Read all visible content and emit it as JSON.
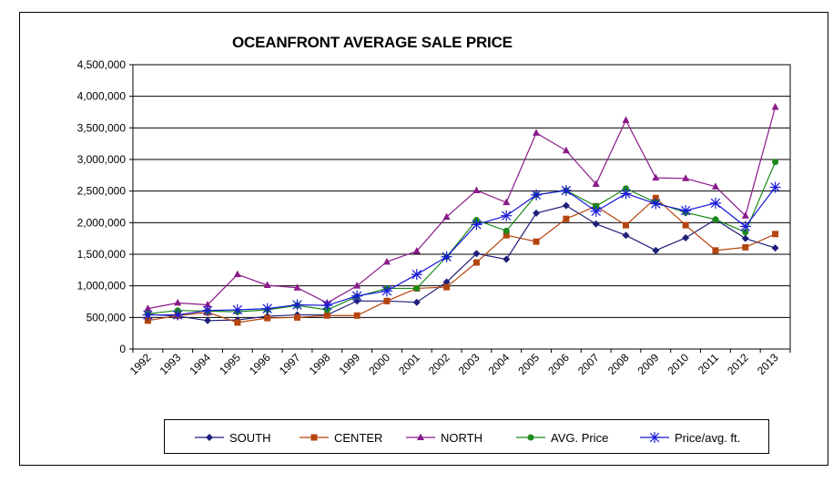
{
  "chart_data": {
    "type": "line",
    "title": "OCEANFRONT AVERAGE SALE PRICE",
    "categories": [
      "1992",
      "1993",
      "1994",
      "1995",
      "1996",
      "1997",
      "1998",
      "1999",
      "2000",
      "2001",
      "2002",
      "2003",
      "2004",
      "2005",
      "2006",
      "2007",
      "2008",
      "2009",
      "2010",
      "2011",
      "2012",
      "2013"
    ],
    "ylim": [
      0,
      4500000
    ],
    "yticks": [
      0,
      500000,
      1000000,
      1500000,
      2000000,
      2500000,
      3000000,
      3500000,
      4000000,
      4500000
    ],
    "ytick_labels": [
      "0",
      "500,000",
      "1,000,000",
      "1,500,000",
      "2,000,000",
      "2,500,000",
      "3,000,000",
      "3,500,000",
      "4,000,000",
      "4,500,000"
    ],
    "grid": "horizontal",
    "legend_position": "bottom",
    "series": [
      {
        "name": "SOUTH",
        "color": "#1f1f7a",
        "marker": "diamond",
        "values": [
          550000,
          520000,
          450000,
          460000,
          520000,
          540000,
          540000,
          760000,
          760000,
          740000,
          1060000,
          1510000,
          1420000,
          2150000,
          2270000,
          1980000,
          1800000,
          1560000,
          1760000,
          2050000,
          1750000,
          1600000
        ]
      },
      {
        "name": "CENTER",
        "color": "#b5450e",
        "marker": "square",
        "values": [
          450000,
          530000,
          580000,
          420000,
          490000,
          500000,
          530000,
          530000,
          760000,
          960000,
          980000,
          1370000,
          1800000,
          1700000,
          2060000,
          2260000,
          1960000,
          2390000,
          1960000,
          1560000,
          1610000,
          1820000
        ]
      },
      {
        "name": "NORTH",
        "color": "#8a1a8a",
        "marker": "triangle",
        "values": [
          640000,
          730000,
          700000,
          1180000,
          1010000,
          970000,
          730000,
          1000000,
          1380000,
          1550000,
          2090000,
          2510000,
          2320000,
          3420000,
          3140000,
          2610000,
          3620000,
          2710000,
          2700000,
          2570000,
          2110000,
          3830000
        ]
      },
      {
        "name": "AVG. Price",
        "color": "#1a8a1a",
        "marker": "circle",
        "values": [
          560000,
          610000,
          600000,
          590000,
          620000,
          690000,
          620000,
          830000,
          960000,
          960000,
          1460000,
          2040000,
          1870000,
          2440000,
          2510000,
          2260000,
          2540000,
          2320000,
          2160000,
          2050000,
          1850000,
          2960000
        ]
      },
      {
        "name": "Price/avg. ft.",
        "color": "#1a1ad9",
        "marker": "asterisk",
        "values": [
          540000,
          540000,
          610000,
          620000,
          640000,
          700000,
          690000,
          840000,
          920000,
          1180000,
          1460000,
          1970000,
          2110000,
          2440000,
          2510000,
          2180000,
          2460000,
          2300000,
          2190000,
          2310000,
          1940000,
          2560000
        ]
      }
    ]
  }
}
